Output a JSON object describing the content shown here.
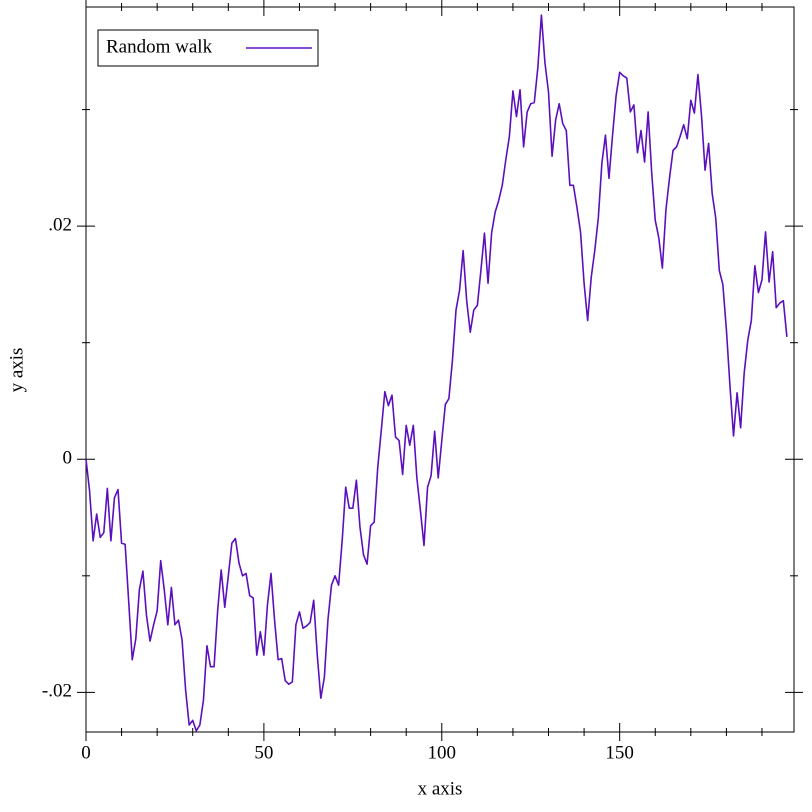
{
  "chart_data": {
    "type": "line",
    "xlabel": "x axis",
    "ylabel": "y axis",
    "legend": "top-left",
    "x": [
      0,
      1,
      2,
      3,
      4,
      5,
      6,
      7,
      8,
      9,
      10,
      11,
      12,
      13,
      14,
      15,
      16,
      17,
      18,
      19,
      20,
      21,
      22,
      23,
      24,
      25,
      26,
      27,
      28,
      29,
      30,
      31,
      32,
      33,
      34,
      35,
      36,
      37,
      38,
      39,
      40,
      41,
      42,
      43,
      44,
      45,
      46,
      47,
      48,
      49,
      50,
      51,
      52,
      53,
      54,
      55,
      56,
      57,
      58,
      59,
      60,
      61,
      62,
      63,
      64,
      65,
      66,
      67,
      68,
      69,
      70,
      71,
      72,
      73,
      74,
      75,
      76,
      77,
      78,
      79,
      80,
      81,
      82,
      83,
      84,
      85,
      86,
      87,
      88,
      89,
      90,
      91,
      92,
      93,
      94,
      95,
      96,
      97,
      98,
      99,
      100,
      101,
      102,
      103,
      104,
      105,
      106,
      107,
      108,
      109,
      110,
      111,
      112,
      113,
      114,
      115,
      116,
      117,
      118,
      119,
      120,
      121,
      122,
      123,
      124,
      125,
      126,
      127,
      128,
      129,
      130,
      131,
      132,
      133,
      134,
      135,
      136,
      137,
      138,
      139,
      140,
      141,
      142,
      143,
      144,
      145,
      146,
      147,
      148,
      149,
      150,
      151,
      152,
      153,
      154,
      155,
      156,
      157,
      158,
      159,
      160,
      161,
      162,
      163,
      164,
      165,
      166,
      167,
      168,
      169,
      170,
      171,
      172,
      173,
      174,
      175,
      176,
      177,
      178,
      179,
      180,
      181,
      182,
      183,
      184,
      185,
      186,
      187,
      188,
      189,
      190,
      191,
      192,
      193,
      194,
      195,
      196,
      197
    ],
    "series": [
      {
        "name": "Random walk",
        "color": "#5b10bd",
        "values": [
          0,
          -0.0027,
          -0.007,
          -0.0047,
          -0.0067,
          -0.0063,
          -0.0025,
          -0.007,
          -0.0033,
          -0.0026,
          -0.0072,
          -0.0073,
          -0.0122,
          -0.0172,
          -0.0154,
          -0.0112,
          -0.0096,
          -0.0134,
          -0.0156,
          -0.0142,
          -0.013,
          -0.0087,
          -0.0112,
          -0.0142,
          -0.011,
          -0.0142,
          -0.0138,
          -0.0155,
          -0.0198,
          -0.0228,
          -0.0224,
          -0.0233,
          -0.0228,
          -0.0207,
          -0.016,
          -0.0178,
          -0.0178,
          -0.013,
          -0.0095,
          -0.0127,
          -0.01,
          -0.0072,
          -0.0068,
          -0.0089,
          -0.01,
          -0.0098,
          -0.0117,
          -0.0119,
          -0.0168,
          -0.0148,
          -0.0168,
          -0.0125,
          -0.0098,
          -0.0138,
          -0.0172,
          -0.0171,
          -0.019,
          -0.0193,
          -0.0191,
          -0.0142,
          -0.0131,
          -0.0145,
          -0.0143,
          -0.014,
          -0.0121,
          -0.0168,
          -0.0205,
          -0.0187,
          -0.0138,
          -0.0108,
          -0.01,
          -0.0108,
          -0.007,
          -0.0024,
          -0.0042,
          -0.0042,
          -0.0018,
          -0.0058,
          -0.0082,
          -0.009,
          -0.0057,
          -0.0054,
          -0.0007,
          0.0025,
          0.0058,
          0.0046,
          0.0055,
          0.0019,
          0.0016,
          -0.0013,
          0.0029,
          0.0012,
          0.0029,
          -0.0016,
          -0.0044,
          -0.0074,
          -0.0024,
          -0.0014,
          0.0024,
          -0.0016,
          0.0016,
          0.0047,
          0.0052,
          0.0085,
          0.0128,
          0.0145,
          0.0179,
          0.0136,
          0.0109,
          0.0128,
          0.0132,
          0.0162,
          0.0194,
          0.0151,
          0.0194,
          0.0212,
          0.0222,
          0.0235,
          0.0257,
          0.0277,
          0.0316,
          0.0294,
          0.0317,
          0.0268,
          0.0298,
          0.0305,
          0.0306,
          0.0336,
          0.0381,
          0.034,
          0.0315,
          0.026,
          0.0291,
          0.0305,
          0.0288,
          0.0282,
          0.0235,
          0.0235,
          0.0216,
          0.0195,
          0.0151,
          0.0119,
          0.0156,
          0.0179,
          0.0207,
          0.0254,
          0.0278,
          0.0241,
          0.0278,
          0.0312,
          0.0332,
          0.0329,
          0.0327,
          0.0298,
          0.0304,
          0.0263,
          0.0282,
          0.0255,
          0.0298,
          0.0246,
          0.0205,
          0.019,
          0.0164,
          0.0214,
          0.0241,
          0.0265,
          0.0268,
          0.0277,
          0.0287,
          0.0275,
          0.0308,
          0.0297,
          0.033,
          0.0295,
          0.0248,
          0.0271,
          0.0228,
          0.0207,
          0.0162,
          0.015,
          0.0111,
          0.0063,
          0.002,
          0.0057,
          0.0027,
          0.0074,
          0.0102,
          0.0119,
          0.0166,
          0.0143,
          0.0154,
          0.0195,
          0.0152,
          0.0178,
          0.013,
          0.0134,
          0.0136,
          0.0105
        ]
      }
    ],
    "xlim": [
      0,
      199
    ],
    "ylim": [
      -0.0234,
      0.0388
    ],
    "xticks": [
      0,
      50,
      100,
      150
    ],
    "xminorticks": [
      10,
      20,
      30,
      40,
      60,
      70,
      80,
      90,
      110,
      120,
      130,
      140,
      160,
      170,
      180,
      190
    ],
    "yticks": [
      {
        "value": -0.02,
        "label": "-.02"
      },
      0,
      {
        "value": 0.02,
        "label": ".02"
      }
    ],
    "yminorticks": [
      -0.01,
      0.01,
      0.03
    ],
    "grid": false
  }
}
